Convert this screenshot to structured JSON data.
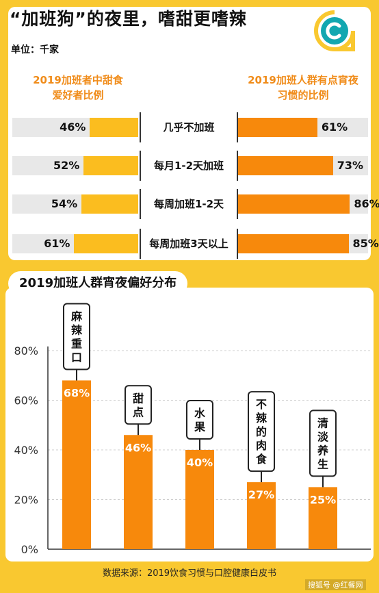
{
  "title": "“加班狗”的夜里，嗜甜更嗜辣",
  "unit": "单位：千家",
  "top_chart": {
    "left_header": "2019加班者中甜食\n爱好者比例",
    "right_header": "2019加班人群有点宵夜\n习惯的比例",
    "rows": [
      {
        "label": "几乎不加班",
        "left_value": 46,
        "left_text": "46%",
        "right_value": 61,
        "right_text": "61%"
      },
      {
        "label": "每月1-2天加班",
        "left_value": 52,
        "left_text": "52%",
        "right_value": 73,
        "right_text": "73%"
      },
      {
        "label": "每周加班1-2天",
        "left_value": 54,
        "left_text": "54%",
        "right_value": 86,
        "right_text": "86%"
      },
      {
        "label": "每周加班3天以上",
        "left_value": 61,
        "left_text": "61%",
        "right_value": 85,
        "right_text": "85%"
      }
    ]
  },
  "section_title": "2019加班人群宵夜偏好分布",
  "chart_data": {
    "type": "bar",
    "categories": [
      "麻辣重口",
      "甜点",
      "水果",
      "不辣的肉食",
      "清淡养生"
    ],
    "values": [
      68,
      46,
      40,
      27,
      25
    ],
    "value_labels": [
      "68%",
      "46%",
      "40%",
      "27%",
      "25%"
    ],
    "ylim": [
      0,
      80
    ],
    "yticks": [
      "0%",
      "20%",
      "40%",
      "60%",
      "80%"
    ],
    "bar_color": "#f7890c"
  },
  "source": "数据来源：2019饮食习惯与口腔健康白皮书",
  "watermark": "搜狐号 @红餐网",
  "colors": {
    "background": "#f9c830",
    "left_bar": "#fbbd1f",
    "right_bar": "#f7890c",
    "accent_text": "#f08c1a",
    "logo_teal": "#12a7b0"
  }
}
